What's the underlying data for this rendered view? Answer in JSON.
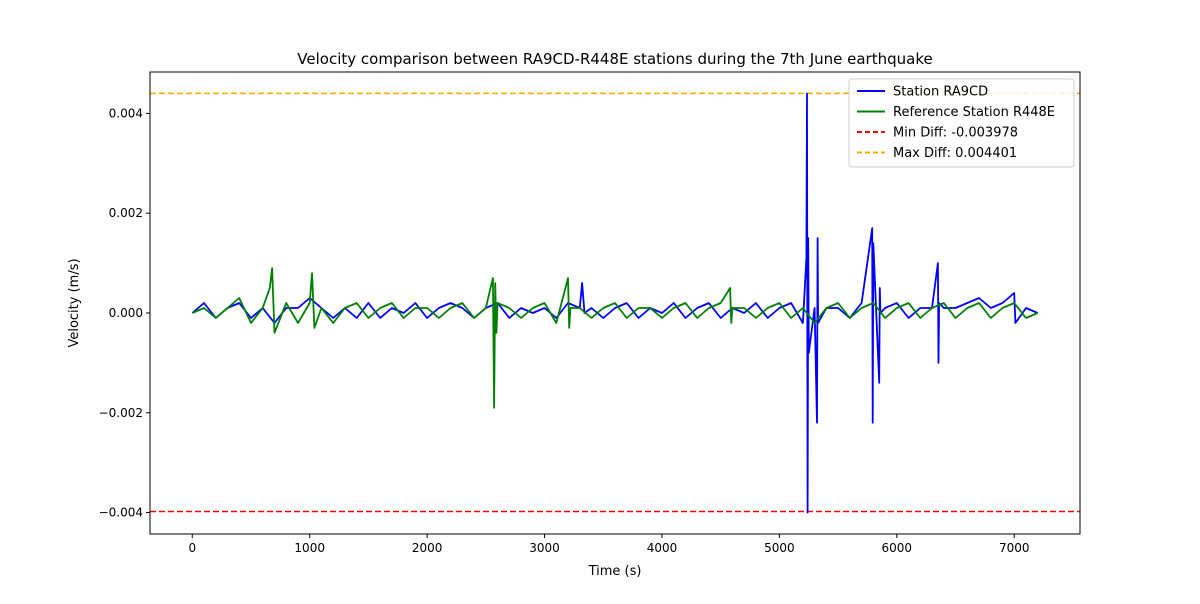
{
  "chart_data": {
    "type": "line",
    "title": "Velocity comparison between RA9CD-R448E stations during the 7th June earthquake",
    "xlabel": "Time (s)",
    "ylabel": "Velocity (m/s)",
    "xlim": [
      -360,
      7560
    ],
    "ylim": [
      -0.00443,
      0.00483
    ],
    "xticks": [
      0,
      1000,
      2000,
      3000,
      4000,
      5000,
      6000,
      7000
    ],
    "xtick_labels": [
      "0",
      "1000",
      "2000",
      "3000",
      "4000",
      "5000",
      "6000",
      "7000"
    ],
    "yticks": [
      -0.004,
      -0.002,
      0.0,
      0.002,
      0.004
    ],
    "ytick_labels": [
      "−0.004",
      "−0.002",
      "0.000",
      "0.002",
      "0.004"
    ],
    "grid": false,
    "legend_position": "top-right",
    "series": [
      {
        "name": "Station RA9CD",
        "color": "#0000ff",
        "x": [
          0,
          100,
          200,
          300,
          400,
          500,
          600,
          700,
          800,
          900,
          1000,
          1100,
          1200,
          1300,
          1400,
          1500,
          1600,
          1700,
          1800,
          1900,
          2000,
          2100,
          2200,
          2300,
          2400,
          2500,
          2600,
          2700,
          2800,
          2900,
          3000,
          3100,
          3200,
          3300,
          3320,
          3340,
          3400,
          3500,
          3600,
          3700,
          3800,
          3900,
          4000,
          4100,
          4200,
          4300,
          4400,
          4500,
          4600,
          4700,
          4800,
          4900,
          5000,
          5100,
          5200,
          5230,
          5235,
          5240,
          5245,
          5250,
          5300,
          5320,
          5325,
          5330,
          5400,
          5500,
          5600,
          5700,
          5790,
          5795,
          5800,
          5850,
          5855,
          5860,
          5900,
          6000,
          6100,
          6200,
          6300,
          6350,
          6355,
          6360,
          6400,
          6500,
          6600,
          6700,
          6800,
          6900,
          7000,
          7010,
          7100,
          7200
        ],
        "values": [
          0.0,
          0.0002,
          -0.0001,
          0.0001,
          0.0002,
          -0.0001,
          0.0001,
          -0.0002,
          0.0001,
          0.0001,
          0.0003,
          0.0001,
          -0.0001,
          0.0001,
          -0.0001,
          0.0002,
          -0.0001,
          0.0001,
          0.0,
          0.0002,
          -0.0001,
          0.0001,
          0.0002,
          0.0001,
          -0.0001,
          0.0001,
          0.0002,
          -0.0001,
          0.0001,
          0.0,
          0.0001,
          -0.0001,
          0.0002,
          0.0001,
          0.0006,
          0.0,
          0.0001,
          -0.0001,
          0.0001,
          0.0002,
          -0.0001,
          0.0001,
          0.0,
          0.0002,
          -0.0001,
          0.0001,
          0.0002,
          -0.0001,
          0.0001,
          0.0,
          0.0002,
          -0.0001,
          0.0001,
          0.0002,
          -0.0002,
          0.0011,
          0.0044,
          -0.004,
          0.0015,
          -0.0008,
          0.0001,
          -0.0022,
          0.0015,
          -0.0002,
          0.0001,
          0.0001,
          -0.0001,
          0.0002,
          0.0017,
          -0.0022,
          0.0014,
          -0.0014,
          0.0005,
          0.0,
          0.0001,
          0.0002,
          -0.0001,
          0.0001,
          0.0001,
          0.001,
          -0.001,
          0.0002,
          0.0001,
          0.0001,
          0.0002,
          0.0003,
          0.0001,
          0.0002,
          0.0004,
          -0.0002,
          0.0001,
          0.0
        ]
      },
      {
        "name": "Reference Station R448E",
        "color": "#008000",
        "x": [
          0,
          100,
          200,
          300,
          400,
          500,
          600,
          660,
          680,
          700,
          800,
          900,
          1000,
          1020,
          1040,
          1100,
          1200,
          1300,
          1400,
          1500,
          1600,
          1700,
          1800,
          1900,
          2000,
          2100,
          2200,
          2300,
          2400,
          2500,
          2560,
          2570,
          2580,
          2590,
          2600,
          2700,
          2800,
          2900,
          3000,
          3100,
          3200,
          3210,
          3220,
          3300,
          3400,
          3500,
          3600,
          3700,
          3800,
          3900,
          4000,
          4100,
          4200,
          4300,
          4400,
          4500,
          4580,
          4590,
          4600,
          4700,
          4800,
          4900,
          5000,
          5100,
          5200,
          5300,
          5400,
          5500,
          5600,
          5700,
          5800,
          5900,
          6000,
          6100,
          6200,
          6300,
          6400,
          6500,
          6600,
          6700,
          6800,
          6900,
          7000,
          7100,
          7200
        ],
        "values": [
          0.0,
          0.0001,
          -0.0001,
          0.0001,
          0.0003,
          -0.0002,
          0.0001,
          0.0005,
          0.0009,
          -0.0004,
          0.0002,
          -0.0002,
          0.0002,
          0.0008,
          -0.0003,
          0.0001,
          -0.0002,
          0.0001,
          0.0002,
          -0.0001,
          0.0001,
          0.0002,
          -0.0001,
          0.0001,
          0.0001,
          -0.0001,
          0.0001,
          0.0002,
          -0.0001,
          0.0001,
          0.0007,
          -0.0019,
          0.0006,
          -0.0004,
          0.0002,
          0.0001,
          -0.0001,
          0.0001,
          0.0002,
          -0.0002,
          0.0007,
          -0.0003,
          0.0001,
          0.0001,
          -0.0001,
          0.0001,
          0.0002,
          -0.0001,
          0.0001,
          0.0001,
          -0.0001,
          0.0001,
          0.0002,
          -0.0001,
          0.0001,
          0.0002,
          0.0005,
          -0.0002,
          0.0001,
          0.0001,
          -0.0001,
          0.0001,
          0.0002,
          -0.0001,
          0.0001,
          -0.0002,
          0.0001,
          0.0002,
          -0.0001,
          0.0001,
          0.0002,
          -0.0001,
          0.0001,
          0.0002,
          -0.0001,
          0.0001,
          0.0002,
          -0.0001,
          0.0001,
          0.0002,
          -0.0001,
          0.0001,
          0.0002,
          -0.0001,
          0.0
        ]
      }
    ],
    "reference_lines": [
      {
        "name": "Min Diff: -0.003978",
        "y": -0.003978,
        "color": "#ff0000",
        "style": "dashed"
      },
      {
        "name": "Max Diff: 0.004401",
        "y": 0.004401,
        "color": "#ffa500",
        "style": "dashed"
      }
    ]
  }
}
